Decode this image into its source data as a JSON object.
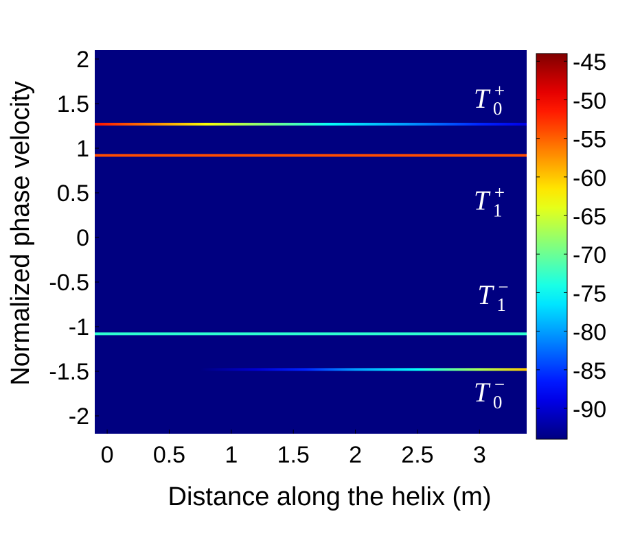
{
  "chart_data": {
    "type": "heatmap",
    "title": "",
    "xlabel": "Distance along the helix (m)",
    "ylabel": "Normalized phase velocity",
    "xlim": [
      -0.1,
      3.38
    ],
    "ylim": [
      -2.2,
      2.1
    ],
    "x_ticks": [
      0,
      0.5,
      1,
      1.5,
      2,
      2.5,
      3
    ],
    "x_tick_labels": [
      "0",
      "0.5",
      "1",
      "1.5",
      "2",
      "2.5",
      "3"
    ],
    "y_ticks": [
      2,
      1.5,
      1,
      0.5,
      0,
      -0.5,
      -1,
      -1.5,
      -2
    ],
    "y_tick_labels": [
      "2",
      "1.5",
      "1",
      "0.5",
      "0",
      "-0.5",
      "-1",
      "-1.5",
      "-2"
    ],
    "colorbar": {
      "colormap": "jet",
      "range": [
        -94,
        -44
      ],
      "ticks": [
        -45,
        -50,
        -55,
        -60,
        -65,
        -70,
        -75,
        -80,
        -85,
        -90
      ],
      "tick_labels": [
        "-45",
        "-50",
        "-55",
        "-60",
        "-65",
        "-70",
        "-75",
        "-80",
        "-85",
        "-90"
      ]
    },
    "background_value": -94,
    "series": [
      {
        "name": "T0+",
        "y": 1.27,
        "x_start": -0.1,
        "x_end": 3.38,
        "x": [
          -0.1,
          0.3,
          0.8,
          1.2,
          1.8,
          2.4,
          3.0,
          3.38
        ],
        "values": [
          -51,
          -56,
          -63,
          -68,
          -75,
          -80,
          -86,
          -89
        ]
      },
      {
        "name": "T1+",
        "y": 0.92,
        "x_start": -0.1,
        "x_end": 3.38,
        "x": [
          -0.1,
          3.38
        ],
        "values": [
          -54,
          -54
        ]
      },
      {
        "name": "T1-",
        "y": -1.08,
        "x_start": -0.1,
        "x_end": 3.38,
        "x": [
          -0.1,
          3.38
        ],
        "values": [
          -73,
          -73
        ]
      },
      {
        "name": "T0-",
        "y": -1.48,
        "x_start": 0.75,
        "x_end": 3.38,
        "x": [
          0.75,
          1.2,
          1.6,
          2.0,
          2.5,
          3.0,
          3.38
        ],
        "values": [
          -94,
          -90,
          -86,
          -80,
          -75,
          -67,
          -60
        ]
      }
    ],
    "annotations": [
      {
        "base": "T",
        "sub": "0",
        "sup": "+",
        "x": 3.02,
        "y": 1.56
      },
      {
        "base": "T",
        "sub": "1",
        "sup": "+",
        "x": 3.02,
        "y": 0.42
      },
      {
        "base": "T",
        "sub": "1",
        "sup": "−",
        "x": 3.05,
        "y": -0.64
      },
      {
        "base": "T",
        "sub": "0",
        "sup": "−",
        "x": 3.02,
        "y": -1.73
      }
    ]
  }
}
